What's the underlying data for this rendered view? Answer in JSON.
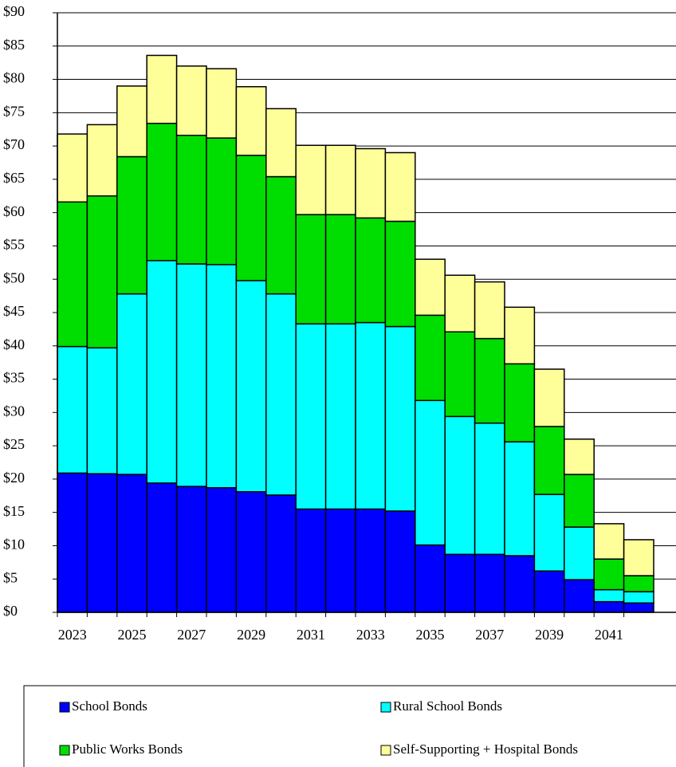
{
  "chart_data": {
    "type": "stacked-bar",
    "categories": [
      "2023",
      null,
      "2025",
      null,
      "2027",
      null,
      "2029",
      null,
      "2031",
      null,
      "2033",
      null,
      "2035",
      null,
      "2037",
      null,
      "2039",
      null,
      "2041",
      null
    ],
    "series": [
      {
        "name": "School Bonds",
        "color": "#0000ff",
        "values": [
          20.9,
          20.8,
          20.7,
          19.4,
          18.9,
          18.7,
          18.1,
          17.6,
          15.5,
          15.5,
          15.5,
          15.2,
          10.1,
          8.7,
          8.7,
          8.5,
          6.2,
          4.9,
          1.6,
          1.4
        ]
      },
      {
        "name": "Rural School Bonds",
        "color": "#00ffff",
        "values": [
          19.0,
          18.9,
          27.1,
          33.4,
          33.4,
          33.5,
          31.7,
          30.2,
          27.8,
          27.8,
          28.0,
          27.7,
          21.7,
          20.7,
          19.7,
          17.1,
          11.5,
          7.9,
          1.8,
          1.7
        ]
      },
      {
        "name": "Public Works Bonds",
        "color": "#00dd00",
        "values": [
          21.7,
          22.8,
          20.6,
          20.6,
          19.3,
          19.0,
          18.8,
          17.6,
          16.4,
          16.4,
          15.7,
          15.8,
          12.8,
          12.7,
          12.7,
          11.7,
          10.2,
          7.9,
          4.6,
          2.4
        ]
      },
      {
        "name": "Self-Supporting + Hospital Bonds",
        "color": "#ffff99",
        "values": [
          10.2,
          10.7,
          10.6,
          10.2,
          10.4,
          10.4,
          10.3,
          10.2,
          10.4,
          10.4,
          10.4,
          10.3,
          8.4,
          8.5,
          8.5,
          8.5,
          8.6,
          5.3,
          5.3,
          5.4
        ]
      }
    ],
    "ylim": [
      0,
      90
    ],
    "yticks": [
      {
        "value": 0,
        "label": "$0"
      },
      {
        "value": 5,
        "label": "$5"
      },
      {
        "value": 10,
        "label": "$10"
      },
      {
        "value": 15,
        "label": "$15"
      },
      {
        "value": 20,
        "label": "$20"
      },
      {
        "value": 25,
        "label": "$25"
      },
      {
        "value": 30,
        "label": "$30"
      },
      {
        "value": 35,
        "label": "$35"
      },
      {
        "value": 40,
        "label": "$40"
      },
      {
        "value": 45,
        "label": "$45"
      },
      {
        "value": 50,
        "label": "$50"
      },
      {
        "value": 55,
        "label": "$55"
      },
      {
        "value": 60,
        "label": "$60"
      },
      {
        "value": 65,
        "label": "$65"
      },
      {
        "value": 70,
        "label": "$70"
      },
      {
        "value": 75,
        "label": "$75"
      },
      {
        "value": 80,
        "label": "$80"
      },
      {
        "value": 85,
        "label": "$85"
      },
      {
        "value": 90,
        "label": "$90"
      }
    ],
    "grid": true,
    "legend": "bottom"
  }
}
